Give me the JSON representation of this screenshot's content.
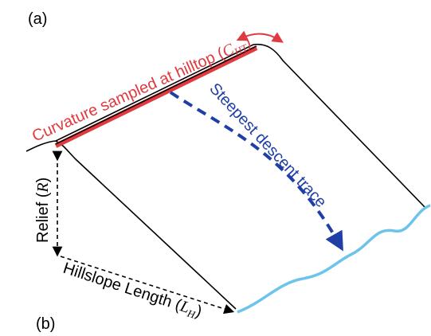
{
  "panel_a": "(a)",
  "panel_b": "(b)",
  "labels": {
    "curvature": {
      "prefix": "Curvature sampled at hilltop (",
      "symbol": "C",
      "subscript": "HT",
      "suffix": ")"
    },
    "descent": {
      "text": "Steepest descent trace"
    },
    "relief": {
      "prefix": "Relief (",
      "symbol": "R",
      "suffix": ")"
    },
    "length": {
      "prefix": "Hillslope Length (",
      "symbol": "L",
      "subscript": "H",
      "suffix": ")"
    }
  }
}
